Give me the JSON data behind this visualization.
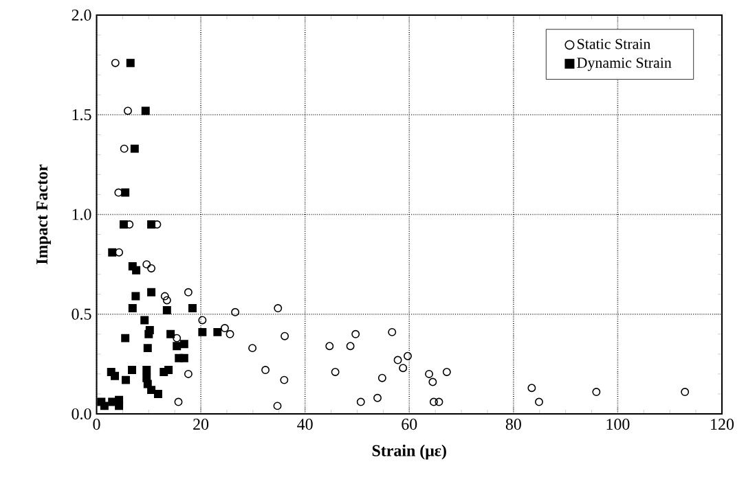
{
  "chart_data": {
    "type": "scatter",
    "xlabel": "Strain (με)",
    "ylabel": "Impact Factor",
    "xlim": [
      0,
      120
    ],
    "ylim": [
      0,
      2.0
    ],
    "xticks": [
      0,
      20,
      40,
      60,
      80,
      100,
      120
    ],
    "yticks": [
      {
        "value": 0,
        "label": "0.0"
      },
      {
        "value": 0.5,
        "label": "0.5"
      },
      {
        "value": 1.0,
        "label": "1.0"
      },
      {
        "value": 1.5,
        "label": "1.5"
      },
      {
        "value": 2.0,
        "label": "2.0"
      }
    ],
    "grid": true,
    "legend": "top right",
    "series": [
      {
        "name": "Static Strain",
        "color": "#000000",
        "marker": "circle",
        "x": [
          3.6,
          6.0,
          5.3,
          4.2,
          6.3,
          11.6,
          4.3,
          9.6,
          10.5,
          13.1,
          13.5,
          17.6,
          15.4,
          17.6,
          15.7,
          20.3,
          26.6,
          34.8,
          24.6,
          25.6,
          29.9,
          36.1,
          32.4,
          36.0,
          34.7,
          44.7,
          49.7,
          48.7,
          45.8,
          50.7,
          53.9,
          54.8,
          56.7,
          57.8,
          58.8,
          59.7,
          63.8,
          64.5,
          64.7,
          65.7,
          67.2,
          83.5,
          84.9,
          95.9,
          112.9
        ],
        "values": [
          1.76,
          1.52,
          1.33,
          1.11,
          0.95,
          0.95,
          0.81,
          0.75,
          0.73,
          0.59,
          0.57,
          0.61,
          0.38,
          0.2,
          0.06,
          0.47,
          0.51,
          0.53,
          0.43,
          0.4,
          0.33,
          0.39,
          0.22,
          0.17,
          0.04,
          0.34,
          0.4,
          0.34,
          0.21,
          0.06,
          0.08,
          0.18,
          0.41,
          0.27,
          0.23,
          0.29,
          0.2,
          0.16,
          0.06,
          0.06,
          0.21,
          0.13,
          0.06,
          0.11,
          0.11
        ]
      },
      {
        "name": "Dynamic Strain",
        "color": "#000000",
        "marker": "square",
        "x": [
          6.5,
          9.4,
          7.3,
          5.5,
          5.2,
          10.5,
          3.0,
          6.9,
          7.6,
          7.5,
          6.9,
          10.5,
          13.5,
          18.4,
          20.3,
          23.2,
          9.2,
          10.2,
          10.0,
          5.5,
          14.2,
          9.8,
          15.4,
          16.8,
          15.8,
          16.8,
          2.8,
          3.5,
          6.8,
          5.6,
          9.6,
          9.6,
          9.8,
          10.5,
          11.8,
          12.9,
          13.8,
          0.9,
          1.5,
          3.0,
          4.3,
          4.3
        ],
        "values": [
          1.76,
          1.52,
          1.33,
          1.11,
          0.95,
          0.95,
          0.81,
          0.74,
          0.72,
          0.59,
          0.53,
          0.61,
          0.52,
          0.53,
          0.41,
          0.41,
          0.47,
          0.42,
          0.4,
          0.38,
          0.4,
          0.33,
          0.34,
          0.35,
          0.28,
          0.28,
          0.21,
          0.19,
          0.22,
          0.17,
          0.22,
          0.18,
          0.15,
          0.12,
          0.1,
          0.21,
          0.22,
          0.06,
          0.04,
          0.06,
          0.07,
          0.04
        ]
      }
    ]
  }
}
